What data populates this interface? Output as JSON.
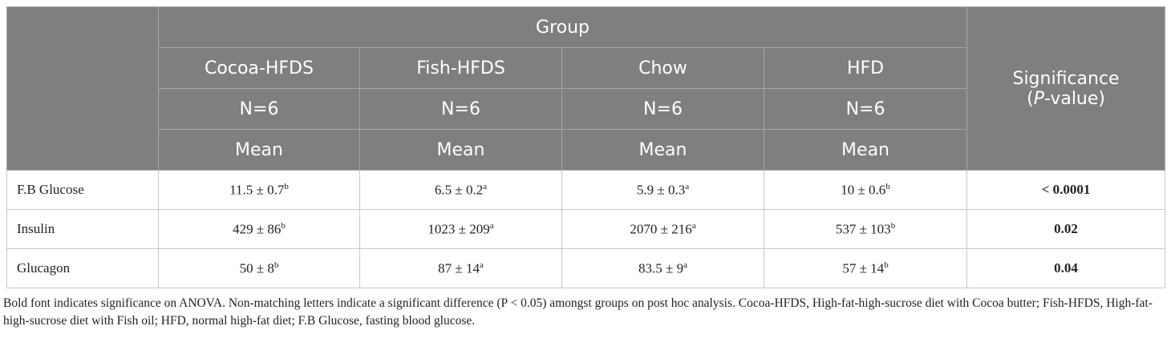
{
  "table": {
    "header": {
      "group": "Group",
      "groups": [
        "Cocoa-HFDS",
        "Fish-HFDS",
        "Chow",
        "HFD"
      ],
      "n": [
        "N=6",
        "N=6",
        "N=6",
        "N=6"
      ],
      "stat": [
        "Mean",
        "Mean",
        "Mean",
        "Mean"
      ],
      "significance": [
        "Significance",
        "(",
        "P",
        "-value)"
      ]
    },
    "rows": [
      {
        "label": "F.B Glucose",
        "cells": [
          {
            "value": "11.5 ± 0.7",
            "sup": "b"
          },
          {
            "value": "6.5 ± 0.2",
            "sup": "a"
          },
          {
            "value": "5.9 ± 0.3",
            "sup": "a"
          },
          {
            "value": "10 ± 0.6",
            "sup": "b"
          }
        ],
        "p": "< 0.0001"
      },
      {
        "label": "Insulin",
        "cells": [
          {
            "value": "429 ± 86",
            "sup": "b"
          },
          {
            "value": "1023 ± 209",
            "sup": "a"
          },
          {
            "value": "2070 ± 216",
            "sup": "a"
          },
          {
            "value": "537 ± 103",
            "sup": "b"
          }
        ],
        "p": "0.02"
      },
      {
        "label": "Glucagon",
        "cells": [
          {
            "value": "50 ± 8",
            "sup": "b"
          },
          {
            "value": "87 ± 14",
            "sup": "a"
          },
          {
            "value": "83.5 ± 9",
            "sup": "a"
          },
          {
            "value": "57 ± 14",
            "sup": "b"
          }
        ],
        "p": "0.04"
      }
    ]
  },
  "footnote": "Bold font indicates significance on ANOVA. Non-matching letters indicate a significant difference (P < 0.05) amongst groups on post hoc analysis. Cocoa-HFDS, High-fat-high-sucrose diet with Cocoa butter; Fish-HFDS, High-fat-high-sucrose diet with Fish oil; HFD, normal high-fat diet; F.B Glucose, fasting blood glucose."
}
